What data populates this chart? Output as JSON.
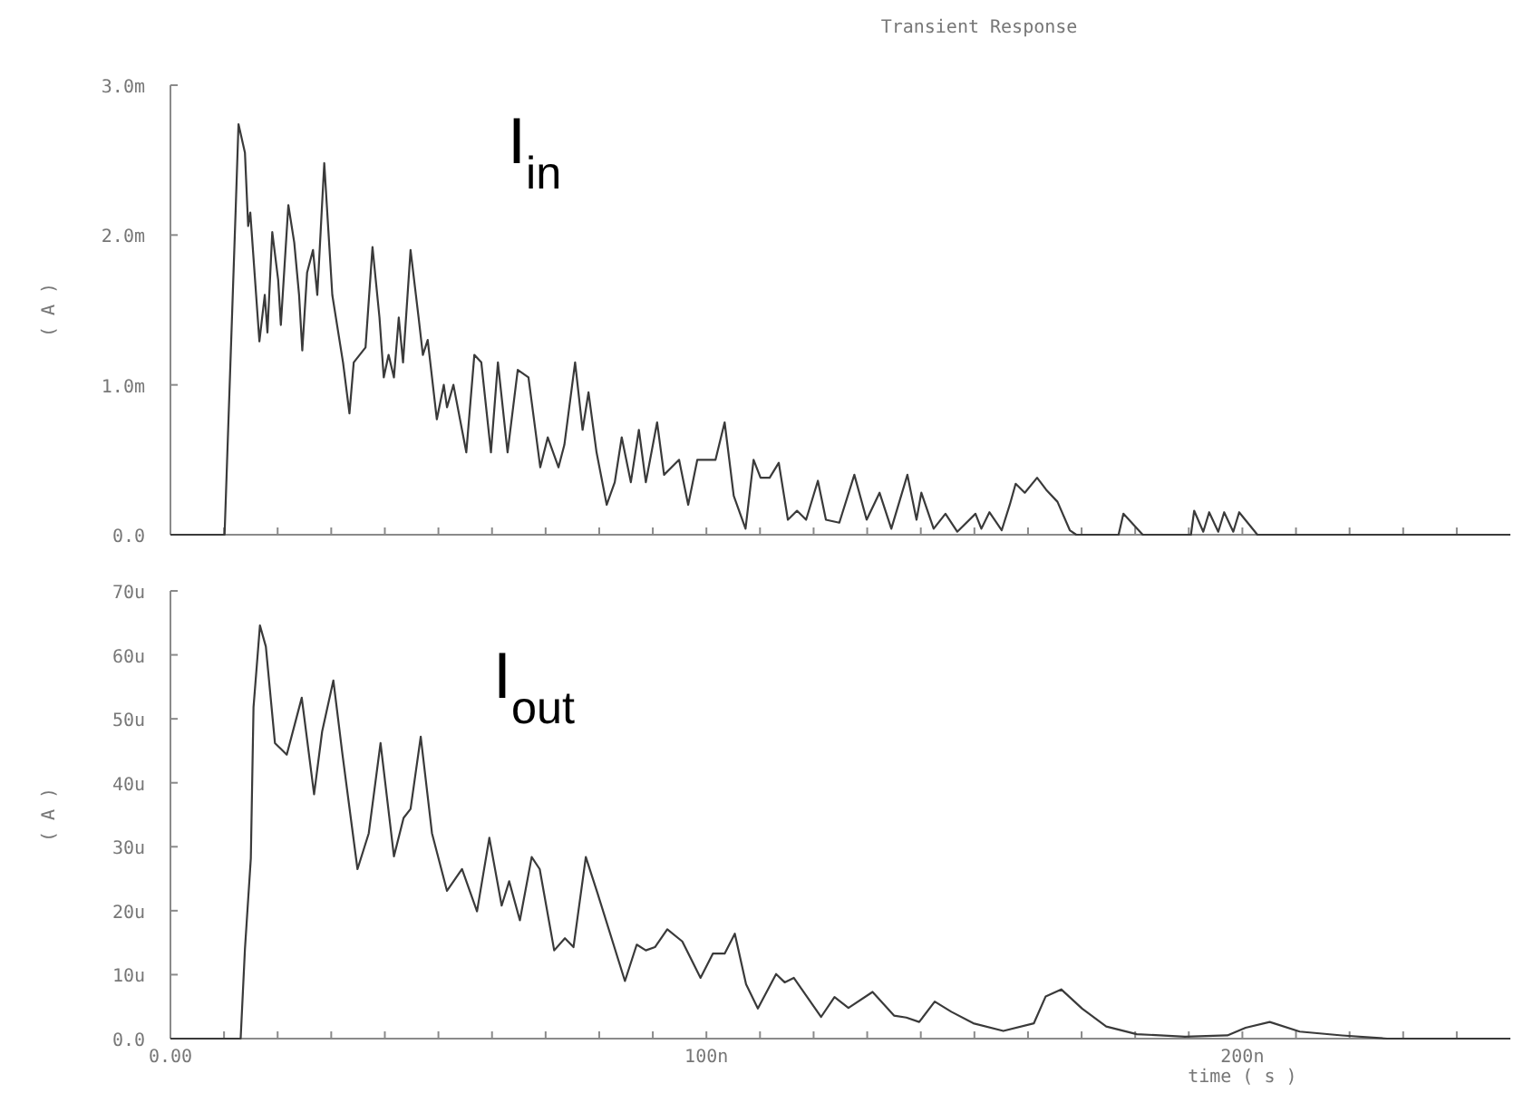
{
  "chart_data": [
    {
      "type": "line",
      "title": "Transient Response",
      "ylabel": "( A )",
      "annotations": [
        "I$_{in}$"
      ],
      "tick_labels": "y",
      "xlim": [
        0,
        250
      ],
      "ylim": [
        0,
        3
      ],
      "xticks": [
        0,
        {
          "value": 10,
          "label": null
        },
        {
          "value": 20,
          "label": null
        },
        {
          "value": 30,
          "label": null
        },
        {
          "value": 40,
          "label": null
        },
        {
          "value": 50,
          "label": null
        },
        {
          "value": 60,
          "label": null
        },
        {
          "value": 70,
          "label": null
        },
        {
          "value": 80,
          "label": null
        },
        {
          "value": 90,
          "label": null
        },
        100,
        {
          "value": 110,
          "label": null
        },
        {
          "value": 120,
          "label": null
        },
        {
          "value": 130,
          "label": null
        },
        {
          "value": 140,
          "label": null
        },
        {
          "value": 150,
          "label": null
        },
        {
          "value": 160,
          "label": null
        },
        {
          "value": 170,
          "label": null
        },
        {
          "value": 180,
          "label": null
        },
        {
          "value": 190,
          "label": null
        },
        200,
        {
          "value": 210,
          "label": null
        },
        {
          "value": 220,
          "label": null
        },
        {
          "value": 230,
          "label": null
        },
        {
          "value": 240,
          "label": null
        }
      ],
      "yticks": [
        {
          "value": 0,
          "label": "0.0"
        },
        {
          "value": 1,
          "label": "1.0m"
        },
        {
          "value": 2,
          "label": "2.0m"
        },
        {
          "value": 3,
          "label": "3.0m"
        }
      ],
      "series": [
        {
          "color": "#3a3a3a",
          "x": [
            0,
            10.1,
            12.2,
            12.7,
            13.9,
            14.5,
            14.9,
            16.6,
            17.6,
            18.1,
            19,
            20.1,
            20.6,
            22,
            23.1,
            24,
            24.6,
            25.5,
            26.6,
            27.4,
            28.7,
            30.2,
            32.2,
            33.4,
            34.2,
            36.4,
            37.7,
            39,
            39.8,
            40.7,
            41.7,
            42.6,
            43.4,
            44.8,
            46.3,
            47.1,
            48,
            49.7,
            51,
            51.6,
            52.8,
            55.2,
            56.7,
            58,
            59.8,
            61.1,
            62.9,
            64.8,
            66.8,
            69,
            70.4,
            72.4,
            73.5,
            75.5,
            76.9,
            78,
            79.5,
            81.4,
            82.9,
            84.2,
            85.9,
            87.4,
            88.7,
            90.8,
            92.1,
            94.9,
            96.6,
            98.3,
            101.7,
            103.4,
            105.1,
            107.3,
            108.8,
            110.1,
            111.8,
            113.5,
            115.2,
            116.9,
            118.6,
            120.8,
            122.3,
            124.8,
            127.6,
            129.9,
            132.3,
            134.5,
            137.5,
            139.2,
            140.1,
            142.4,
            144.6,
            146.8,
            150.2,
            151.3,
            152.8,
            155.1,
            156.6,
            157.7,
            159.4,
            161.7,
            163.4,
            165.5,
            167.8,
            169,
            176.9,
            177.8,
            181.4,
            190.4,
            191,
            192.7,
            193.8,
            195.5,
            196.6,
            198.3,
            199.4,
            202.8,
            250
          ],
          "values": [
            0,
            0,
            2.2,
            2.74,
            2.55,
            2.06,
            2.15,
            1.29,
            1.6,
            1.35,
            2.02,
            1.7,
            1.4,
            2.2,
            1.95,
            1.6,
            1.23,
            1.75,
            1.9,
            1.6,
            2.48,
            1.6,
            1.15,
            0.81,
            1.15,
            1.25,
            1.92,
            1.45,
            1.05,
            1.2,
            1.05,
            1.45,
            1.15,
            1.9,
            1.45,
            1.2,
            1.3,
            0.77,
            1,
            0.85,
            1,
            0.55,
            1.2,
            1.15,
            0.55,
            1.15,
            0.55,
            1.1,
            1.05,
            0.45,
            0.65,
            0.45,
            0.6,
            1.15,
            0.7,
            0.95,
            0.55,
            0.2,
            0.35,
            0.65,
            0.35,
            0.7,
            0.35,
            0.75,
            0.4,
            0.5,
            0.2,
            0.5,
            0.5,
            0.75,
            0.26,
            0.04,
            0.5,
            0.38,
            0.38,
            0.48,
            0.1,
            0.16,
            0.1,
            0.36,
            0.1,
            0.08,
            0.4,
            0.1,
            0.28,
            0.04,
            0.4,
            0.1,
            0.28,
            0.04,
            0.14,
            0.02,
            0.14,
            0.04,
            0.15,
            0.03,
            0.2,
            0.34,
            0.28,
            0.38,
            0.3,
            0.22,
            0.03,
            0,
            0,
            0.14,
            0,
            0,
            0.16,
            0.02,
            0.15,
            0.02,
            0.15,
            0.02,
            0.15,
            0,
            0
          ]
        }
      ]
    },
    {
      "type": "line",
      "xlabel": "time ( s )",
      "ylabel": "( A )",
      "annotations": [
        "I$_{out}$"
      ],
      "xlim": [
        0,
        250
      ],
      "ylim": [
        0,
        70
      ],
      "xticks": [
        {
          "value": 0,
          "label": "0.00"
        },
        {
          "value": 10,
          "label": null
        },
        {
          "value": 20,
          "label": null
        },
        {
          "value": 30,
          "label": null
        },
        {
          "value": 40,
          "label": null
        },
        {
          "value": 50,
          "label": null
        },
        {
          "value": 60,
          "label": null
        },
        {
          "value": 70,
          "label": null
        },
        {
          "value": 80,
          "label": null
        },
        {
          "value": 90,
          "label": null
        },
        {
          "value": 100,
          "label": "100n"
        },
        {
          "value": 110,
          "label": null
        },
        {
          "value": 120,
          "label": null
        },
        {
          "value": 130,
          "label": null
        },
        {
          "value": 140,
          "label": null
        },
        {
          "value": 150,
          "label": null
        },
        {
          "value": 160,
          "label": null
        },
        {
          "value": 170,
          "label": null
        },
        {
          "value": 180,
          "label": null
        },
        {
          "value": 190,
          "label": null
        },
        {
          "value": 200,
          "label": "200n"
        },
        {
          "value": 210,
          "label": null
        },
        {
          "value": 220,
          "label": null
        },
        {
          "value": 230,
          "label": null
        },
        {
          "value": 240,
          "label": null
        }
      ],
      "yticks": [
        {
          "value": 0,
          "label": "0.0"
        },
        {
          "value": 10,
          "label": "10u"
        },
        {
          "value": 20,
          "label": "20u"
        },
        {
          "value": 30,
          "label": "30u"
        },
        {
          "value": 40,
          "label": "40u"
        },
        {
          "value": 50,
          "label": "50u"
        },
        {
          "value": 60,
          "label": "60u"
        },
        {
          "value": 70,
          "label": "70u"
        }
      ],
      "series": [
        {
          "color": "#3a3a3a",
          "x": [
            0,
            13.1,
            13.9,
            15,
            15.5,
            16.7,
            17.8,
            19.5,
            20.6,
            21.7,
            24.5,
            26.8,
            28.3,
            30.4,
            32.1,
            34.9,
            37,
            39.2,
            41.7,
            43.5,
            44.8,
            46.7,
            48.8,
            51.6,
            54.4,
            57.2,
            59.5,
            61.8,
            63.2,
            65.2,
            67.4,
            68.9,
            71.6,
            73.6,
            75.2,
            77.5,
            79.7,
            84.8,
            87,
            88.7,
            90.4,
            92.7,
            95.5,
            98.9,
            101.2,
            103.4,
            105.3,
            107.4,
            109.6,
            113,
            114.6,
            116.3,
            121.4,
            123.9,
            126.5,
            131,
            135,
            137.3,
            139.7,
            142.6,
            145.7,
            149.8,
            155.4,
            161.1,
            163.3,
            166.2,
            170.1,
            174.6,
            180.3,
            189.3,
            197.2,
            200.6,
            205.1,
            210.7,
            218.6,
            227,
            250
          ],
          "values": [
            0,
            0,
            14,
            28.2,
            51.8,
            64.6,
            61.3,
            46.2,
            45.3,
            44.4,
            53.3,
            38.2,
            48,
            56,
            44.4,
            26.5,
            32.1,
            46.2,
            28.5,
            34.5,
            35.9,
            47.2,
            32.1,
            23.1,
            26.5,
            19.9,
            31.4,
            20.8,
            24.6,
            18.5,
            28.4,
            26.5,
            13.8,
            15.7,
            14.3,
            28.4,
            22.7,
            9,
            14.7,
            13.8,
            14.3,
            17.1,
            15.2,
            9.5,
            13.3,
            13.3,
            16.4,
            8.5,
            4.7,
            10.1,
            8.8,
            9.5,
            3.4,
            6.5,
            4.8,
            7.3,
            3.6,
            3.3,
            2.6,
            5.8,
            4.2,
            2.4,
            1.2,
            2.4,
            6.6,
            7.7,
            4.7,
            1.9,
            0.7,
            0.3,
            0.5,
            1.7,
            2.6,
            1.1,
            0.5,
            0,
            0
          ]
        }
      ]
    }
  ]
}
